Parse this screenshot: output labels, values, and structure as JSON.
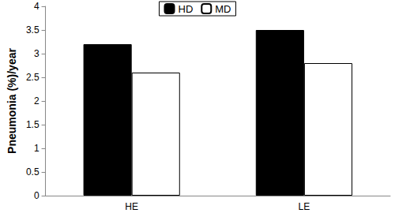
{
  "chart_data": {
    "type": "bar",
    "y_label": "Pneumonia (%)/year",
    "categories": [
      "HE",
      "LE"
    ],
    "series": [
      {
        "name": "HD",
        "color": "#000000",
        "values": [
          3.2,
          3.5
        ]
      },
      {
        "name": "MD",
        "color": "#ffffff",
        "values": [
          2.6,
          2.8
        ]
      }
    ],
    "ylim": [
      0,
      4
    ],
    "yticks": [
      0,
      0.5,
      1,
      1.5,
      2,
      2.5,
      3,
      3.5,
      4
    ],
    "grid": false,
    "legend": "top"
  }
}
